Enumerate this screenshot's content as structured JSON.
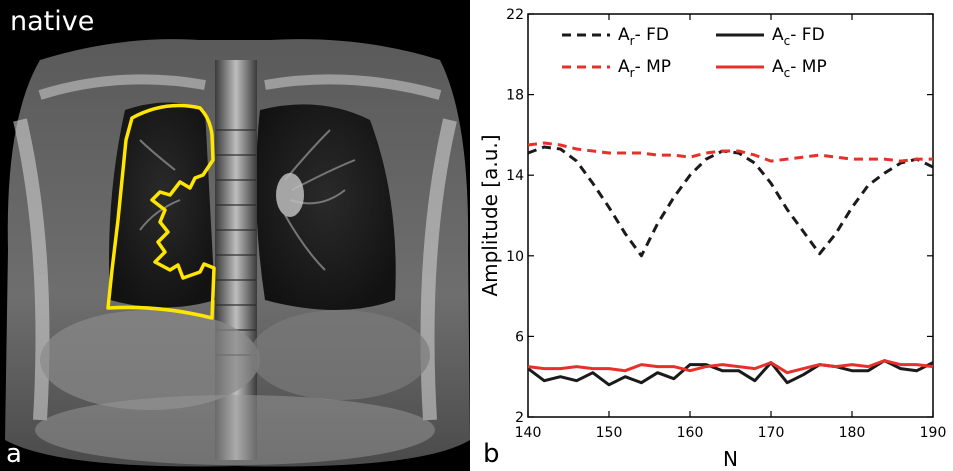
{
  "panel_a": {
    "letter": "a",
    "label": "native",
    "outline_color": "#ffe600"
  },
  "panel_b": {
    "letter": "b"
  },
  "chart_data": {
    "type": "line",
    "xlabel": "N",
    "ylabel": "Amplitude [a.u.]",
    "xlim": [
      140,
      190
    ],
    "ylim": [
      2,
      22
    ],
    "xticks": [
      140,
      150,
      160,
      170,
      180,
      190
    ],
    "yticks": [
      2,
      6,
      10,
      14,
      18,
      22
    ],
    "legend_position": "top",
    "series": [
      {
        "name": "Ar - FD",
        "sym": "A",
        "sub": "r",
        "suffix": "- FD",
        "color": "#1a1a1a",
        "dash": "dashed",
        "x": [
          140,
          142,
          144,
          146,
          148,
          150,
          152,
          154,
          156,
          158,
          160,
          162,
          164,
          166,
          168,
          170,
          172,
          174,
          176,
          178,
          180,
          182,
          184,
          186,
          188,
          190
        ],
        "y": [
          15.1,
          15.4,
          15.3,
          14.7,
          13.6,
          12.4,
          11.1,
          10.0,
          11.6,
          12.9,
          14.0,
          14.8,
          15.2,
          15.1,
          14.6,
          13.6,
          12.3,
          11.2,
          10.1,
          11.1,
          12.4,
          13.5,
          14.1,
          14.6,
          14.8,
          14.4
        ]
      },
      {
        "name": "Ac - FD",
        "sym": "A",
        "sub": "c",
        "suffix": "- FD",
        "color": "#1a1a1a",
        "dash": "solid",
        "x": [
          140,
          142,
          144,
          146,
          148,
          150,
          152,
          154,
          156,
          158,
          160,
          162,
          164,
          166,
          168,
          170,
          172,
          174,
          176,
          178,
          180,
          182,
          184,
          186,
          188,
          190
        ],
        "y": [
          4.4,
          3.8,
          4.0,
          3.8,
          4.2,
          3.6,
          4.0,
          3.7,
          4.2,
          3.9,
          4.6,
          4.6,
          4.3,
          4.3,
          3.8,
          4.7,
          3.7,
          4.1,
          4.6,
          4.5,
          4.3,
          4.3,
          4.8,
          4.4,
          4.3,
          4.7
        ]
      },
      {
        "name": "Ar - MP",
        "sym": "A",
        "sub": "r",
        "suffix": "- MP",
        "color": "#e8302a",
        "dash": "dashed",
        "x": [
          140,
          142,
          144,
          146,
          148,
          150,
          152,
          154,
          156,
          158,
          160,
          162,
          164,
          166,
          168,
          170,
          172,
          174,
          176,
          178,
          180,
          182,
          184,
          186,
          188,
          190
        ],
        "y": [
          15.5,
          15.6,
          15.5,
          15.3,
          15.2,
          15.1,
          15.1,
          15.1,
          15.0,
          15.0,
          14.9,
          15.1,
          15.2,
          15.2,
          15.0,
          14.7,
          14.8,
          14.9,
          15.0,
          14.9,
          14.8,
          14.8,
          14.8,
          14.7,
          14.8,
          14.8
        ]
      },
      {
        "name": "Ac - MP",
        "sym": "A",
        "sub": "c",
        "suffix": "- MP",
        "color": "#e8302a",
        "dash": "solid",
        "x": [
          140,
          142,
          144,
          146,
          148,
          150,
          152,
          154,
          156,
          158,
          160,
          162,
          164,
          166,
          168,
          170,
          172,
          174,
          176,
          178,
          180,
          182,
          184,
          186,
          188,
          190
        ],
        "y": [
          4.5,
          4.4,
          4.4,
          4.5,
          4.4,
          4.4,
          4.3,
          4.6,
          4.5,
          4.5,
          4.3,
          4.5,
          4.6,
          4.5,
          4.4,
          4.7,
          4.2,
          4.4,
          4.6,
          4.5,
          4.6,
          4.5,
          4.8,
          4.6,
          4.6,
          4.5
        ]
      }
    ]
  }
}
